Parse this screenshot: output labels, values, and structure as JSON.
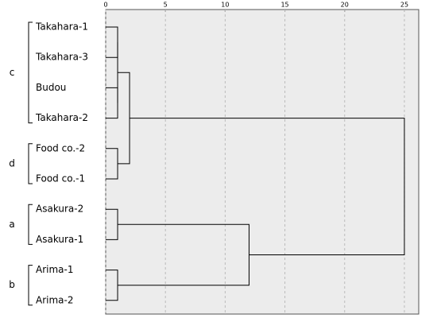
{
  "chart_data": {
    "type": "dendrogram",
    "xlim": [
      0,
      26.2
    ],
    "xticks": [
      0,
      5,
      10,
      15,
      20,
      25
    ],
    "grid": true,
    "tree": {
      "height": 25,
      "children": [
        {
          "height": 2,
          "children": [
            {
              "height": 1,
              "group": "c",
              "children": [
                {
                  "height": 1,
                  "children": [
                    {
                      "label": "Takahara-1"
                    },
                    {
                      "label": "Takahara-3"
                    }
                  ]
                },
                {
                  "height": 1,
                  "children": [
                    {
                      "label": "Budou"
                    },
                    {
                      "label": "Takahara-2"
                    }
                  ]
                }
              ]
            },
            {
              "height": 1,
              "group": "d",
              "children": [
                {
                  "label": "Food co.-2"
                },
                {
                  "label": "Food co.-1"
                }
              ]
            }
          ]
        },
        {
          "height": 12,
          "children": [
            {
              "height": 1,
              "group": "a",
              "children": [
                {
                  "label": "Asakura-2"
                },
                {
                  "label": "Asakura-1"
                }
              ]
            },
            {
              "height": 1,
              "group": "b",
              "children": [
                {
                  "label": "Arima-1"
                },
                {
                  "label": "Arima-2"
                }
              ]
            }
          ]
        }
      ]
    }
  }
}
